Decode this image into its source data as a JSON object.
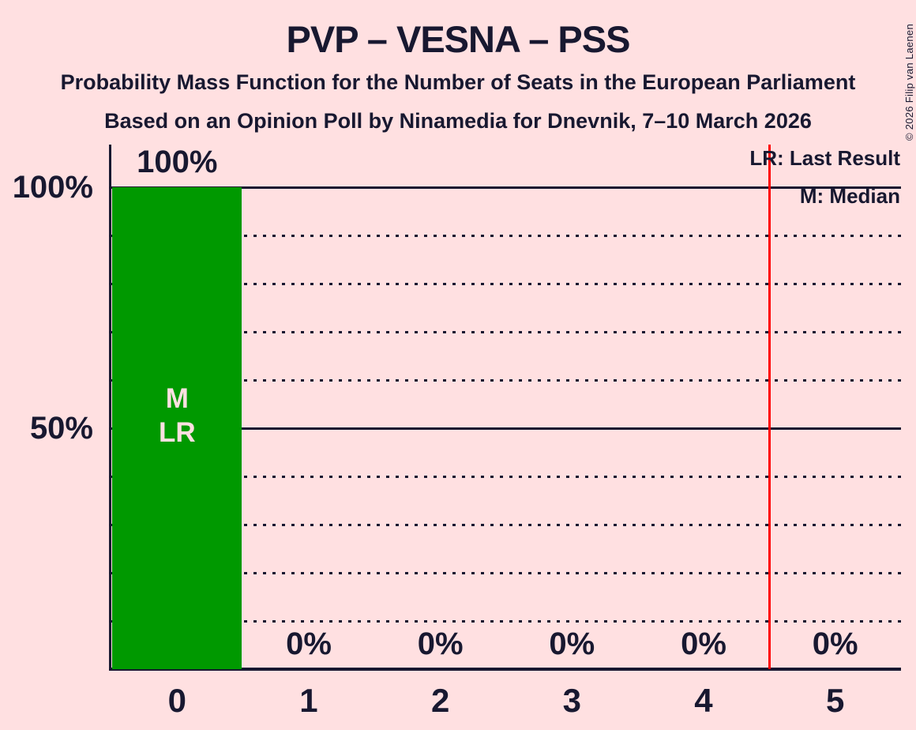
{
  "header": {
    "title": "PVP – VESNA – PSS",
    "subtitle": "Probability Mass Function for the Number of Seats in the European Parliament",
    "poll_details": "Based on an Opinion Poll by Ninamedia for Dnevnik, 7–10 March 2026"
  },
  "copyright": "© 2026 Filip van Laenen",
  "legend": {
    "last_result": "LR: Last Result",
    "median": "M: Median"
  },
  "colors": {
    "background": "#FFE0E1",
    "text": "#181830",
    "bar": "#009900",
    "bar_label_text": "#FFE0E1",
    "majority_line": "#FF0000"
  },
  "chart_data": {
    "type": "bar",
    "title": "PVP – VESNA – PSS",
    "categories": [
      "0",
      "1",
      "2",
      "3",
      "4",
      "5"
    ],
    "values": [
      100,
      0,
      0,
      0,
      0,
      0
    ],
    "value_labels": [
      "100%",
      "0%",
      "0%",
      "0%",
      "0%",
      "0%"
    ],
    "ylim": [
      0,
      100
    ],
    "y_ticks": [
      {
        "value": 100,
        "label": "100%"
      },
      {
        "value": 50,
        "label": "50%"
      }
    ],
    "gridlines": {
      "solid": [
        100,
        50
      ],
      "dotted": [
        90,
        80,
        70,
        60,
        40,
        30,
        20,
        10
      ]
    },
    "legend_position": "top-right",
    "annotations": {
      "annotated_category": "0",
      "bar_inner_labels": [
        "M",
        "LR"
      ],
      "majority_line_x": 4.5
    }
  }
}
